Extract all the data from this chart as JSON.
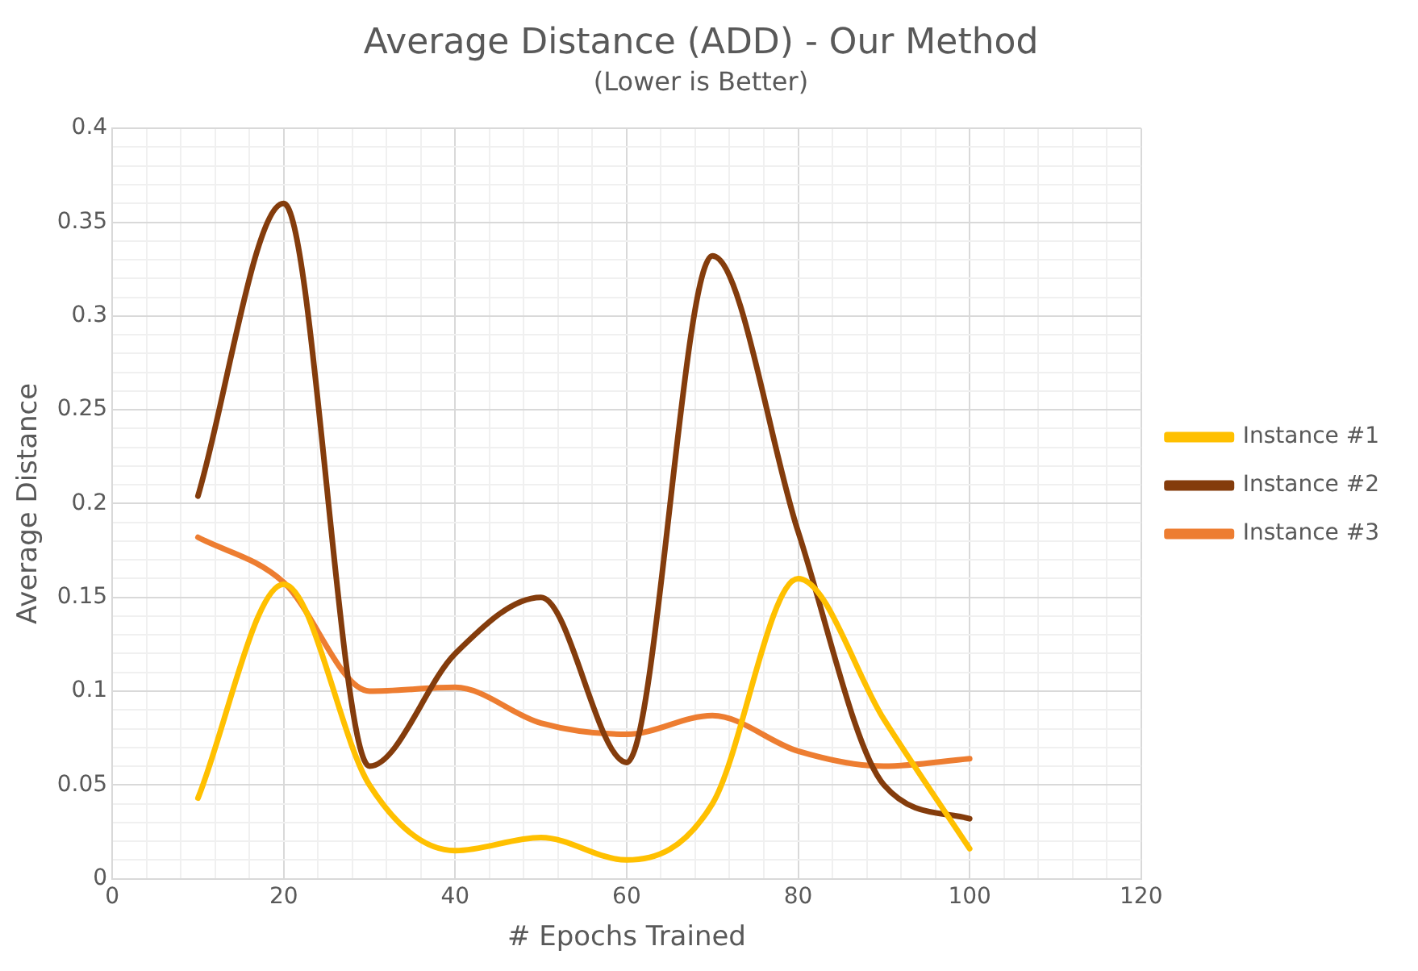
{
  "chart_data": {
    "type": "line",
    "title": "Average Distance (ADD) - Our Method",
    "subtitle": "(Lower is Better)",
    "xlabel": "# Epochs Trained",
    "ylabel": "Average Distance",
    "x": [
      10,
      20,
      30,
      40,
      50,
      60,
      70,
      80,
      90,
      100
    ],
    "series": [
      {
        "name": "Instance #1",
        "color": "#ffc000",
        "values": [
          0.043,
          0.157,
          0.05,
          0.015,
          0.022,
          0.01,
          0.04,
          0.16,
          0.085,
          0.016
        ]
      },
      {
        "name": "Instance #2",
        "color": "#843c0c",
        "values": [
          0.204,
          0.36,
          0.06,
          0.12,
          0.15,
          0.062,
          0.332,
          0.185,
          0.05,
          0.032
        ]
      },
      {
        "name": "Instance #3",
        "color": "#ed7d31",
        "values": [
          0.182,
          0.158,
          0.1,
          0.102,
          0.083,
          0.077,
          0.087,
          0.068,
          0.06,
          0.064
        ]
      }
    ],
    "xlim": [
      0,
      120
    ],
    "xticks": [
      0,
      20,
      40,
      60,
      80,
      100,
      120
    ],
    "ylim": [
      0,
      0.4
    ],
    "yticks": [
      0,
      0.05,
      0.1,
      0.15,
      0.2,
      0.25,
      0.3,
      0.35,
      0.4
    ],
    "grid": true,
    "legend": "right",
    "marker": "none",
    "line_style": "solid"
  }
}
